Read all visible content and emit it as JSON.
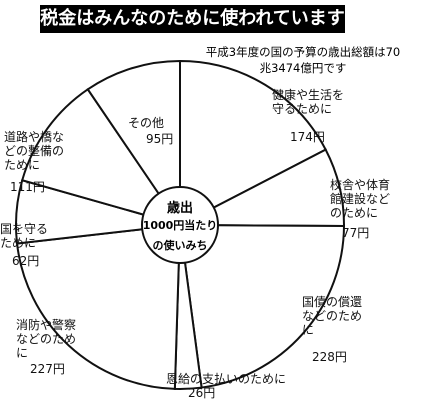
{
  "chart_data": {
    "type": "pie",
    "title": "税金はみんなのために使われています",
    "subtitle": "平成3年度の国の予算の歳出総額は70兆3474億円です",
    "center_text": [
      "歳出",
      "1000円当たり",
      "の使いみち"
    ],
    "categories": [
      "健康や生活を守るために",
      "校舎や体育館建設などのために",
      "国債の償還などのために",
      "恩給の支払いのために",
      "消防や警察などのために",
      "国を守るために",
      "道路や橋などの整備のために",
      "その他"
    ],
    "values": [
      174,
      77,
      228,
      26,
      227,
      62,
      111,
      95
    ],
    "value_labels": [
      "174円",
      "77円",
      "228円",
      "26円",
      "227円",
      "62円",
      "111円",
      "95円"
    ],
    "color": "#ffffff"
  }
}
